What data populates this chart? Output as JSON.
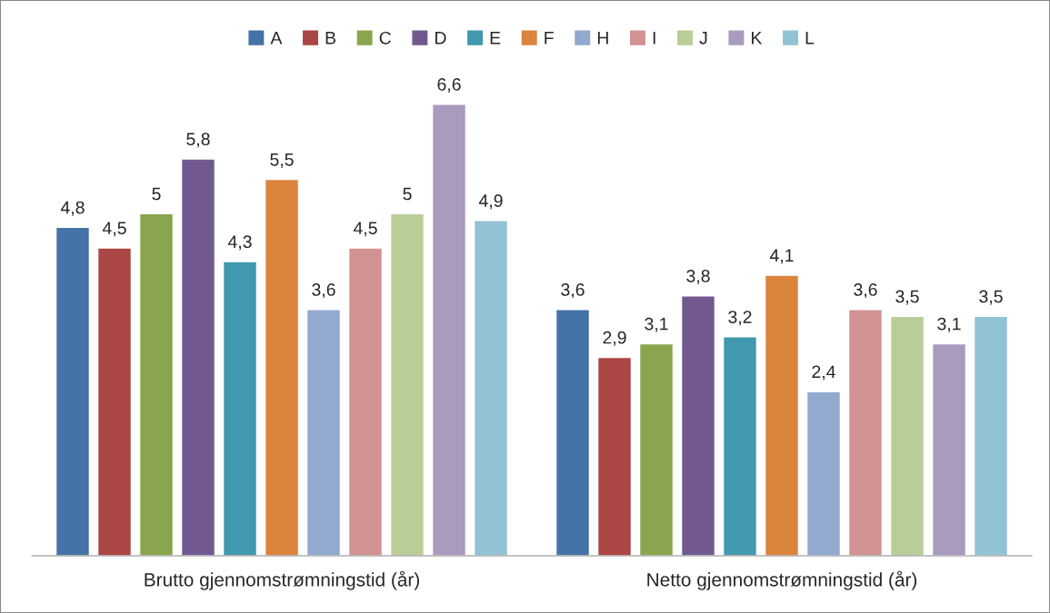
{
  "chart_data": {
    "type": "bar",
    "categories": [
      "Brutto gjennomstrømningstid (år)",
      "Netto gjennomstrømningstid (år)"
    ],
    "series": [
      {
        "name": "A",
        "color": "#4572a7",
        "values": [
          4.8,
          3.6
        ],
        "value_labels": [
          "4,8",
          "3,6"
        ]
      },
      {
        "name": "B",
        "color": "#aa4643",
        "values": [
          4.5,
          2.9
        ],
        "value_labels": [
          "4,5",
          "2,9"
        ]
      },
      {
        "name": "C",
        "color": "#89a54e",
        "values": [
          5,
          3.1
        ],
        "value_labels": [
          "5",
          "3,1"
        ]
      },
      {
        "name": "D",
        "color": "#71588f",
        "values": [
          5.8,
          3.8
        ],
        "value_labels": [
          "5,8",
          "3,8"
        ]
      },
      {
        "name": "E",
        "color": "#4198af",
        "values": [
          4.3,
          3.2
        ],
        "value_labels": [
          "4,3",
          "3,2"
        ]
      },
      {
        "name": "F",
        "color": "#db843d",
        "values": [
          5.5,
          4.1
        ],
        "value_labels": [
          "5,5",
          "4,1"
        ]
      },
      {
        "name": "H",
        "color": "#93a9cf",
        "values": [
          3.6,
          2.4
        ],
        "value_labels": [
          "3,6",
          "2,4"
        ]
      },
      {
        "name": "I",
        "color": "#d19392",
        "values": [
          4.5,
          3.6
        ],
        "value_labels": [
          "4,5",
          "3,6"
        ]
      },
      {
        "name": "J",
        "color": "#b9cd96",
        "values": [
          5,
          3.5
        ],
        "value_labels": [
          "5",
          "3,5"
        ]
      },
      {
        "name": "K",
        "color": "#a99bbd",
        "values": [
          6.6,
          3.1
        ],
        "value_labels": [
          "6,6",
          "3,1"
        ]
      },
      {
        "name": "L",
        "color": "#92c3d4",
        "values": [
          4.9,
          3.5
        ],
        "value_labels": [
          "4,9",
          "3,5"
        ]
      }
    ],
    "legend": "top",
    "grid": false
  }
}
